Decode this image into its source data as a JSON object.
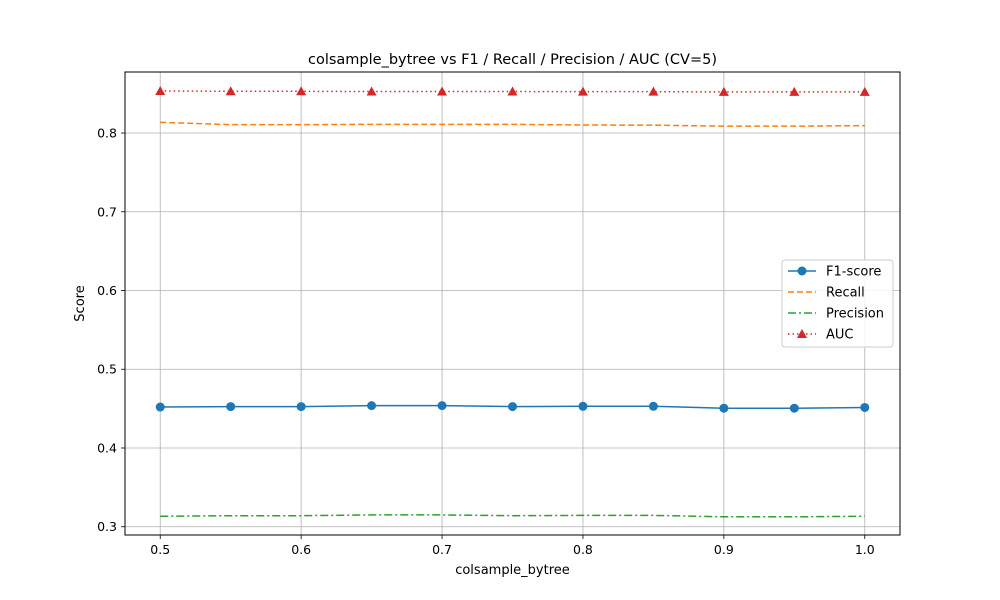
{
  "chart_data": {
    "type": "line",
    "title": "colsample_bytree vs F1 / Recall / Precision / AUC (CV=5)",
    "xlabel": "colsample_bytree",
    "ylabel": "Score",
    "xlim": [
      0.475,
      1.025
    ],
    "ylim": [
      0.2895,
      0.8775
    ],
    "x_ticks": [
      0.5,
      0.6,
      0.7,
      0.8,
      0.9,
      1.0
    ],
    "x_tick_labels": [
      "0.5",
      "0.6",
      "0.7",
      "0.8",
      "0.9",
      "1.0"
    ],
    "y_ticks": [
      0.3,
      0.4,
      0.5,
      0.6,
      0.7,
      0.8
    ],
    "y_tick_labels": [
      "0.3",
      "0.4",
      "0.5",
      "0.6",
      "0.7",
      "0.8"
    ],
    "grid": true,
    "legend_position": "center-right",
    "x": [
      0.5,
      0.55,
      0.6,
      0.65,
      0.7,
      0.75,
      0.8,
      0.85,
      0.9,
      0.95,
      1.0
    ],
    "series": [
      {
        "name": "F1-score",
        "color": "#1f77b4",
        "style": "solid",
        "marker": "circle",
        "values": [
          0.452,
          0.4526,
          0.4526,
          0.4538,
          0.4538,
          0.4526,
          0.453,
          0.453,
          0.4505,
          0.4505,
          0.4515
        ]
      },
      {
        "name": "Recall",
        "color": "#ff7f0e",
        "style": "dashed",
        "marker": "none",
        "values": [
          0.8136,
          0.8106,
          0.8106,
          0.811,
          0.811,
          0.811,
          0.8102,
          0.81,
          0.8087,
          0.8087,
          0.8094
        ]
      },
      {
        "name": "Precision",
        "color": "#2ca02c",
        "style": "dashdot",
        "marker": "none",
        "values": [
          0.3133,
          0.314,
          0.314,
          0.315,
          0.315,
          0.314,
          0.3144,
          0.3144,
          0.3126,
          0.3126,
          0.3133
        ]
      },
      {
        "name": "AUC",
        "color": "#d62728",
        "style": "dotted",
        "marker": "triangle",
        "values": [
          0.8534,
          0.853,
          0.853,
          0.8527,
          0.8527,
          0.8527,
          0.8525,
          0.8525,
          0.8522,
          0.8522,
          0.8522
        ]
      }
    ]
  }
}
